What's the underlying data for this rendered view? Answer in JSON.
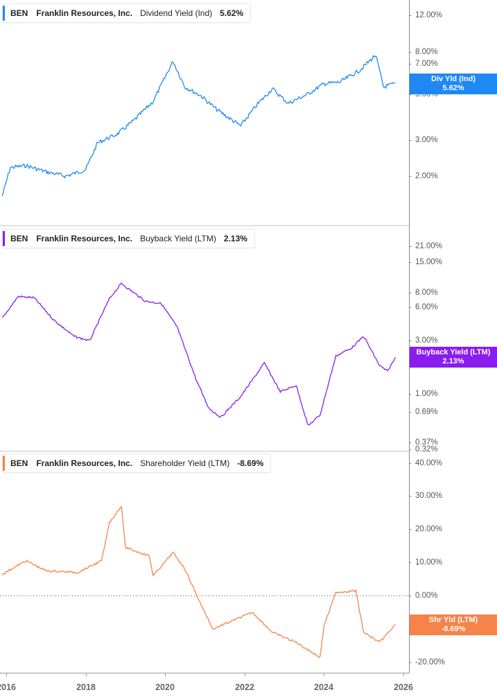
{
  "chart_data": [
    {
      "type": "line",
      "title": "BEN Franklin Resources, Inc. Dividend Yield (Ind)",
      "ticker": "BEN",
      "company": "Franklin Resources, Inc.",
      "metric": "Dividend Yield (Ind)",
      "current_value": "5.62%",
      "badge_label": "Div Yld (Ind)",
      "color": "#1e88f5",
      "scale": "log",
      "yticks": [
        "12.00%",
        "8.00%",
        "7.00%",
        "5.00%",
        "3.00%",
        "2.00%"
      ],
      "ylim": [
        1.4,
        14
      ],
      "x": [
        2015.9,
        2016.1,
        2016.5,
        2017.0,
        2017.5,
        2018.0,
        2018.3,
        2018.8,
        2019.2,
        2019.7,
        2020.2,
        2020.5,
        2020.9,
        2021.3,
        2021.9,
        2022.3,
        2022.7,
        2023.1,
        2023.6,
        2024.0,
        2024.4,
        2024.9,
        2025.3,
        2025.5,
        2025.8
      ],
      "values": [
        1.6,
        2.2,
        2.25,
        2.1,
        2.0,
        2.15,
        2.9,
        3.2,
        3.7,
        4.6,
        7.2,
        5.4,
        4.9,
        4.2,
        3.5,
        4.4,
        5.3,
        4.5,
        5.0,
        5.6,
        5.7,
        6.5,
        7.7,
        5.4,
        5.62
      ]
    },
    {
      "type": "line",
      "title": "BEN Franklin Resources, Inc. Buyback Yield (LTM)",
      "ticker": "BEN",
      "company": "Franklin Resources, Inc.",
      "metric": "Buyback Yield (LTM)",
      "current_value": "2.13%",
      "badge_label": "Buyback Yield (LTM)",
      "color": "#8a1cf0",
      "scale": "log",
      "yticks": [
        "21.00%",
        "15.00%",
        "8.00%",
        "6.00%",
        "3.00%",
        "2.00%",
        "1.00%",
        "0.69%",
        "0.37%",
        "0.32%"
      ],
      "ylim": [
        0.32,
        25
      ],
      "x": [
        2015.9,
        2016.3,
        2016.7,
        2017.2,
        2017.7,
        2018.1,
        2018.6,
        2018.9,
        2019.5,
        2019.9,
        2020.3,
        2020.8,
        2021.1,
        2021.4,
        2021.9,
        2022.5,
        2022.9,
        2023.3,
        2023.6,
        2023.9,
        2024.3,
        2024.7,
        2025.0,
        2025.4,
        2025.6,
        2025.8
      ],
      "values": [
        4.8,
        7.5,
        7.3,
        4.6,
        3.3,
        3.0,
        7.2,
        9.8,
        6.8,
        6.5,
        4.0,
        1.3,
        0.75,
        0.62,
        0.95,
        1.9,
        1.05,
        1.2,
        0.52,
        0.65,
        2.2,
        2.6,
        3.3,
        1.8,
        1.6,
        2.13
      ]
    },
    {
      "type": "line",
      "title": "BEN Franklin Resources, Inc. Shareholder Yield (LTM)",
      "ticker": "BEN",
      "company": "Franklin Resources, Inc.",
      "metric": "Shareholder Yield (LTM)",
      "current_value": "-8.69%",
      "badge_label": "Shr Yld (LTM)",
      "color": "#f5834a",
      "scale": "linear",
      "yticks": [
        "40.00%",
        "30.00%",
        "20.00%",
        "10.00%",
        "0.00%",
        "-10.00%",
        "-20.00%"
      ],
      "ylim": [
        -22,
        42
      ],
      "zero_line": true,
      "x": [
        2015.9,
        2016.5,
        2017.0,
        2017.8,
        2018.4,
        2018.6,
        2018.9,
        2019.0,
        2019.6,
        2019.7,
        2020.2,
        2020.5,
        2020.8,
        2021.2,
        2021.6,
        2022.2,
        2022.7,
        2023.3,
        2023.9,
        2024.0,
        2024.3,
        2024.8,
        2025.0,
        2025.4,
        2025.8
      ],
      "values": [
        6.5,
        10.5,
        7.5,
        7.0,
        10.5,
        22.0,
        27.0,
        14.5,
        12.0,
        6.0,
        13.0,
        8.0,
        0.0,
        -10.0,
        -8.0,
        -5.0,
        -11.0,
        -14.0,
        -18.5,
        -9.0,
        1.0,
        1.5,
        -11.0,
        -14.0,
        -8.69
      ]
    }
  ],
  "xaxis": {
    "labels": [
      "2016",
      "2018",
      "2020",
      "2022",
      "2024",
      "2026"
    ]
  }
}
